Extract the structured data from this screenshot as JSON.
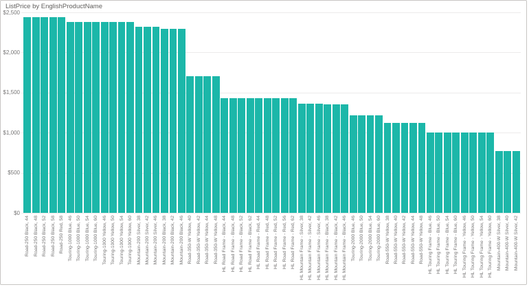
{
  "window": {
    "title": "ListPrice by EnglishProductName"
  },
  "colors": {
    "bar": "#1cb7a9",
    "title": "#605e5c",
    "axis_label": "#777676",
    "gridline": "#eceaea",
    "border": "#c7c5c3",
    "background": "#ffffff"
  },
  "chart_data": {
    "type": "bar",
    "title": "ListPrice by EnglishProductName",
    "ylim": [
      0,
      2500
    ],
    "y_tick_step": 500,
    "y_tick_labels": [
      "$0",
      "$500",
      "$1,000",
      "$1,500",
      "$2,000",
      "$2,500"
    ],
    "grid": true,
    "legend": false,
    "categories": [
      "Road-250 Black, 44",
      "Road-250 Black, 48",
      "Road-250 Black, 52",
      "Road-250 Black, 58",
      "Road-250 Red, 58",
      "Touring-1000 Blue, 46",
      "Touring-1000 Blue, 50",
      "Touring-1000 Blue, 54",
      "Touring-1000 Blue, 60",
      "Touring-1000 Yellow, 46",
      "Touring-1000 Yellow, 50",
      "Touring-1000 Yellow, 54",
      "Touring-1000 Yellow, 60",
      "Mountain-200 Silver, 38",
      "Mountain-200 Silver, 42",
      "Mountain-200 Silver, 46",
      "Mountain-200 Black, 38",
      "Mountain-200 Black, 42",
      "Mountain-200 Black, 46",
      "Road-350-W Yellow, 40",
      "Road-350-W Yellow, 42",
      "Road-350-W Yellow, 44",
      "Road-350-W Yellow, 48",
      "HL Road Frame - Black, 44",
      "HL Road Frame - Black, 48",
      "HL Road Frame - Black, 52",
      "HL Road Frame - Black, 62",
      "HL Road Frame - Red, 44",
      "HL Road Frame - Red, 48",
      "HL Road Frame - Red, 52",
      "HL Road Frame - Red, 56",
      "HL Road Frame - Red, 62",
      "HL Mountain Frame - Silver, 38",
      "HL Mountain Frame - Silver, 42",
      "HL Mountain Frame - Silver, 46",
      "HL Mountain Frame - Black, 38",
      "HL Mountain Frame - Black, 42",
      "HL Mountain Frame - Black, 46",
      "Touring-2000 Blue, 46",
      "Touring-2000 Blue, 50",
      "Touring-2000 Blue, 54",
      "Touring-2000 Blue, 60",
      "Road-550-W Yellow, 38",
      "Road-550-W Yellow, 40",
      "Road-550-W Yellow, 42",
      "Road-550-W Yellow, 44",
      "Road-550-W Yellow, 48",
      "HL Touring Frame - Blue, 46",
      "HL Touring Frame - Blue, 50",
      "HL Touring Frame - Blue, 54",
      "HL Touring Frame - Blue, 60",
      "HL Touring Frame - Yellow, 46",
      "HL Touring Frame - Yellow, 50",
      "HL Touring Frame - Yellow, 54",
      "HL Touring Frame - Yellow, 60",
      "Mountain-400-W Silver, 38",
      "Mountain-400-W Silver, 40",
      "Mountain-400-W Silver, 42"
    ],
    "values": [
      2443.35,
      2443.35,
      2443.35,
      2443.35,
      2443.35,
      2384.07,
      2384.07,
      2384.07,
      2384.07,
      2384.07,
      2384.07,
      2384.07,
      2384.07,
      2319.99,
      2319.99,
      2319.99,
      2294.99,
      2294.99,
      2294.99,
      1700.99,
      1700.99,
      1700.99,
      1700.99,
      1431.5,
      1431.5,
      1431.5,
      1431.5,
      1431.5,
      1431.5,
      1431.5,
      1431.5,
      1431.5,
      1364.5,
      1364.5,
      1364.5,
      1349.6,
      1349.6,
      1349.6,
      1214.85,
      1214.85,
      1214.85,
      1214.85,
      1120.49,
      1120.49,
      1120.49,
      1120.49,
      1120.49,
      1003.91,
      1003.91,
      1003.91,
      1003.91,
      1003.91,
      1003.91,
      1003.91,
      1003.91,
      769.49,
      769.49,
      769.49
    ]
  }
}
